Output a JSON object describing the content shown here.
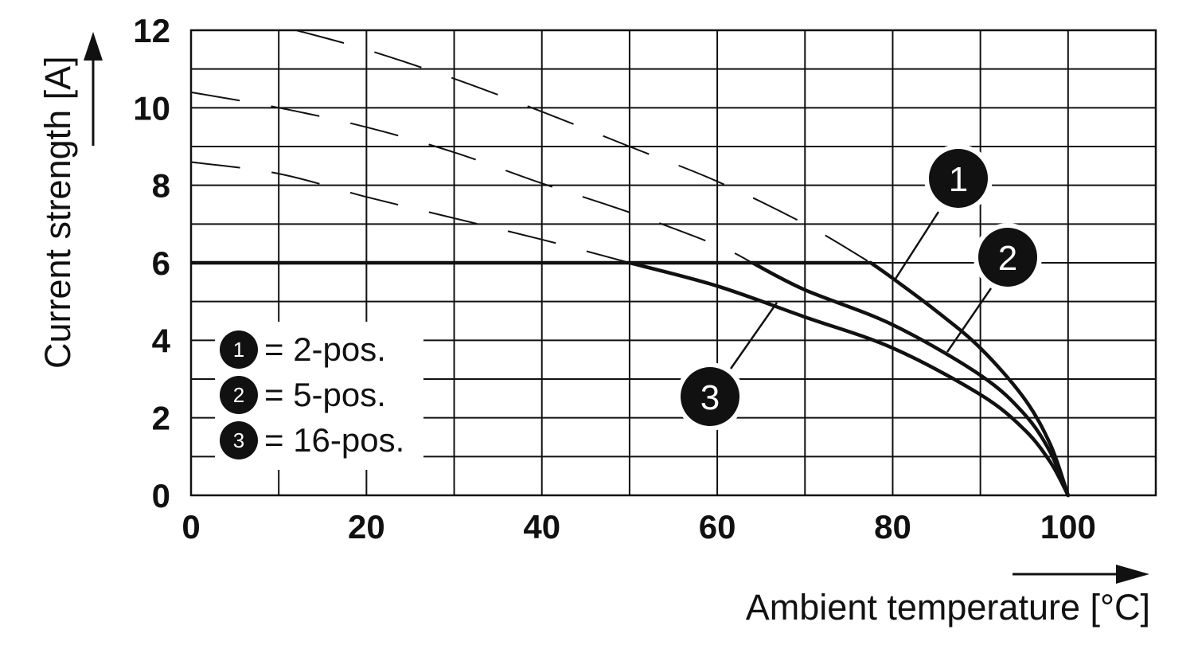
{
  "chart_data": {
    "type": "line",
    "xlabel": "Ambient temperature [°C]",
    "ylabel": "Current strength [A]",
    "xlim": [
      0,
      110
    ],
    "ylim": [
      0,
      12
    ],
    "x_ticks": [
      "0",
      "20",
      "40",
      "60",
      "80",
      "100"
    ],
    "y_ticks": [
      "0",
      "2",
      "4",
      "6",
      "8",
      "10",
      "12"
    ],
    "grid": true,
    "legend_position": "bottom-left",
    "series": [
      {
        "badge": "1",
        "legend_text": "= 2-pos.",
        "limit": 6,
        "solid": [
          [
            77.5,
            6.0
          ],
          [
            80,
            5.6
          ],
          [
            85,
            4.75
          ],
          [
            90,
            3.8
          ],
          [
            95,
            2.5
          ],
          [
            98,
            1.3
          ],
          [
            100,
            0
          ]
        ],
        "dashed": [
          [
            12,
            12.0
          ],
          [
            20,
            11.5
          ],
          [
            30,
            10.75
          ],
          [
            40,
            9.9
          ],
          [
            50,
            9.0
          ],
          [
            60,
            8.1
          ],
          [
            70,
            7.0
          ],
          [
            77.5,
            6.0
          ]
        ]
      },
      {
        "badge": "2",
        "legend_text": "= 5-pos.",
        "limit": 6,
        "solid": [
          [
            64,
            6.0
          ],
          [
            70,
            5.3
          ],
          [
            80,
            4.4
          ],
          [
            90,
            3.1
          ],
          [
            95,
            2.1
          ],
          [
            98,
            1.1
          ],
          [
            100,
            0
          ]
        ],
        "dashed": [
          [
            0,
            10.4
          ],
          [
            10,
            10.0
          ],
          [
            20,
            9.5
          ],
          [
            30,
            8.85
          ],
          [
            40,
            8.05
          ],
          [
            50,
            7.3
          ],
          [
            60,
            6.45
          ],
          [
            64,
            6.0
          ]
        ]
      },
      {
        "badge": "3",
        "legend_text": "= 16-pos.",
        "limit": 6,
        "solid": [
          [
            50,
            6.0
          ],
          [
            60,
            5.4
          ],
          [
            70,
            4.6
          ],
          [
            80,
            3.8
          ],
          [
            90,
            2.6
          ],
          [
            95,
            1.7
          ],
          [
            98,
            0.85
          ],
          [
            100,
            0
          ]
        ],
        "dashed": [
          [
            0,
            8.6
          ],
          [
            10,
            8.3
          ],
          [
            20,
            7.7
          ],
          [
            30,
            7.15
          ],
          [
            40,
            6.6
          ],
          [
            50,
            6.0
          ]
        ]
      }
    ],
    "colors": {
      "line": "#111111",
      "badge_fill": "#111111",
      "grid": "#111111"
    }
  }
}
